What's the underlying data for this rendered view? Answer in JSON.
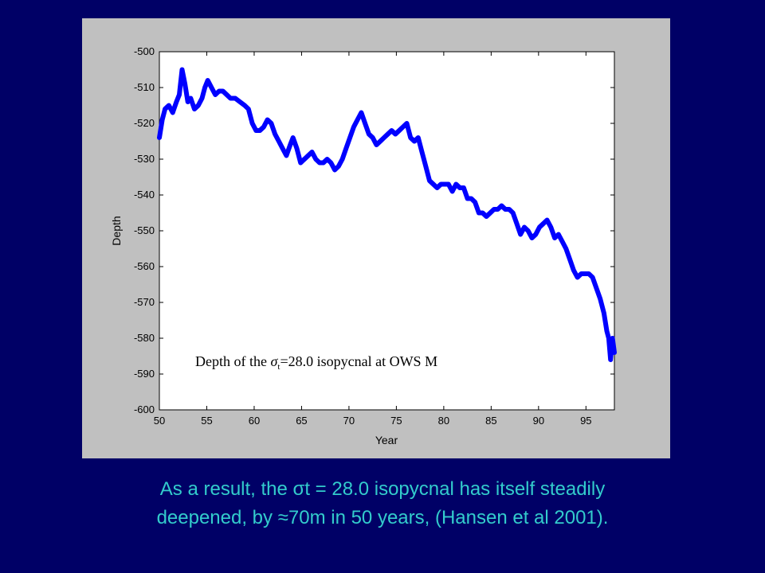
{
  "chart_data": {
    "type": "line",
    "xlabel": "Year",
    "ylabel": "Depth",
    "xlim": [
      50,
      98
    ],
    "ylim": [
      -600,
      -500
    ],
    "x_ticks": [
      50,
      55,
      60,
      65,
      70,
      75,
      80,
      85,
      90,
      95
    ],
    "y_ticks": [
      -500,
      -510,
      -520,
      -530,
      -540,
      -550,
      -560,
      -570,
      -580,
      -590,
      -600
    ],
    "grid": false,
    "annotation": {
      "prefix": "Depth of the ",
      "symbol": "σ",
      "subscript": "t",
      "suffix": "=28.0 isopycnal at OWS M"
    },
    "series": [
      {
        "color": "#0000ff",
        "x": [
          50.0,
          50.3,
          50.6,
          51.0,
          51.4,
          51.8,
          52.1,
          52.4,
          52.7,
          53.0,
          53.3,
          53.7,
          54.1,
          54.5,
          54.8,
          55.1,
          55.5,
          55.9,
          56.3,
          56.7,
          57.1,
          57.5,
          58.0,
          58.5,
          59.0,
          59.4,
          59.8,
          60.2,
          60.6,
          61.0,
          61.4,
          61.8,
          62.2,
          62.6,
          63.0,
          63.4,
          63.8,
          64.1,
          64.5,
          64.9,
          65.3,
          65.7,
          66.1,
          66.5,
          66.9,
          67.3,
          67.7,
          68.1,
          68.5,
          68.9,
          69.3,
          69.7,
          70.1,
          70.5,
          70.9,
          71.3,
          71.7,
          72.1,
          72.5,
          72.9,
          73.3,
          73.7,
          74.1,
          74.5,
          74.9,
          75.3,
          75.7,
          76.1,
          76.5,
          76.9,
          77.3,
          77.7,
          78.1,
          78.5,
          78.9,
          79.3,
          79.7,
          80.1,
          80.5,
          80.9,
          81.3,
          81.7,
          82.1,
          82.5,
          82.9,
          83.3,
          83.7,
          84.1,
          84.5,
          84.9,
          85.3,
          85.7,
          86.1,
          86.5,
          86.9,
          87.3,
          87.7,
          88.1,
          88.5,
          88.9,
          89.3,
          89.7,
          90.1,
          90.5,
          90.9,
          91.3,
          91.7,
          92.1,
          92.5,
          92.9,
          93.3,
          93.7,
          94.1,
          94.5,
          94.9,
          95.3,
          95.7,
          96.1,
          96.5,
          96.9,
          97.2,
          97.4,
          97.6,
          97.8,
          98.0
        ],
        "y": [
          -524,
          -519,
          -516,
          -515,
          -517,
          -514,
          -512,
          -505,
          -509,
          -514,
          -513,
          -516,
          -515,
          -513,
          -510,
          -508,
          -510,
          -512,
          -511,
          -511,
          -512,
          -513,
          -513,
          -514,
          -515,
          -516,
          -520,
          -522,
          -522,
          -521,
          -519,
          -520,
          -523,
          -525,
          -527,
          -529,
          -526,
          -524,
          -527,
          -531,
          -530,
          -529,
          -528,
          -530,
          -531,
          -531,
          -530,
          -531,
          -533,
          -532,
          -530,
          -527,
          -524,
          -521,
          -519,
          -517,
          -520,
          -523,
          -524,
          -526,
          -525,
          -524,
          -523,
          -522,
          -523,
          -522,
          -521,
          -520,
          -524,
          -525,
          -524,
          -528,
          -532,
          -536,
          -537,
          -538,
          -537,
          -537,
          -537,
          -539,
          -537,
          -538,
          -538,
          -541,
          -541,
          -542,
          -545,
          -545,
          -546,
          -545,
          -544,
          -544,
          -543,
          -544,
          -544,
          -545,
          -548,
          -551,
          -549,
          -550,
          -552,
          -551,
          -549,
          -548,
          -547,
          -549,
          -552,
          -551,
          -553,
          -555,
          -558,
          -561,
          -563,
          -562,
          -562,
          -562,
          -563,
          -566,
          -569,
          -573,
          -578,
          -580,
          -586,
          -580,
          -584
        ]
      }
    ]
  },
  "caption": {
    "line1_prefix": "As a result, the ",
    "line1_symbol": "σ",
    "line1_suffix": "t = 28.0 isopycnal has itself steadily",
    "line2_prefix": "deepened, by ",
    "line2_symbol": "≈",
    "line2_suffix": "70m in 50 years, (Hansen et al 2001)."
  }
}
